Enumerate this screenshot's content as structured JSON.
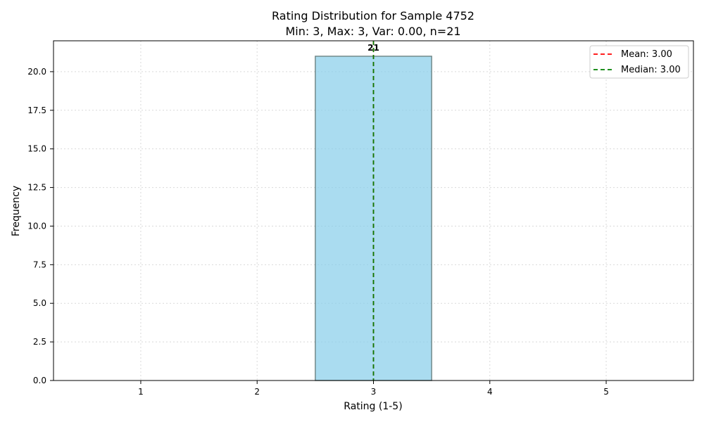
{
  "chart_data": {
    "type": "bar",
    "title": "Rating Distribution for Sample 4752",
    "subtitle": "Min: 3, Max: 3, Var: 0.00, n=21",
    "xlabel": "Rating (1-5)",
    "ylabel": "Frequency",
    "categories": [
      1,
      2,
      3,
      4,
      5
    ],
    "values": [
      0,
      0,
      21,
      0,
      0
    ],
    "x_ticks": [
      "1",
      "2",
      "3",
      "4",
      "5"
    ],
    "y_ticks": [
      "0.0",
      "2.5",
      "5.0",
      "7.5",
      "10.0",
      "12.5",
      "15.0",
      "17.5",
      "20.0"
    ],
    "ylim": [
      0,
      22
    ],
    "xlim": [
      0.25,
      5.75
    ],
    "grid": true,
    "legend_position": "top-right",
    "bar_labels": [
      {
        "category": 3,
        "text": "21"
      }
    ],
    "reference_lines": [
      {
        "label": "Mean: 3.00",
        "x": 3.0,
        "color": "#ff0000",
        "style": "dashed"
      },
      {
        "label": "Median: 3.00",
        "x": 3.0,
        "color": "#008000",
        "style": "dashed"
      }
    ],
    "colors": {
      "bar_fill": "#87ceeb",
      "bar_edge": "#2f4f4f",
      "grid": "#d9d9d9",
      "axis": "#000000"
    }
  }
}
